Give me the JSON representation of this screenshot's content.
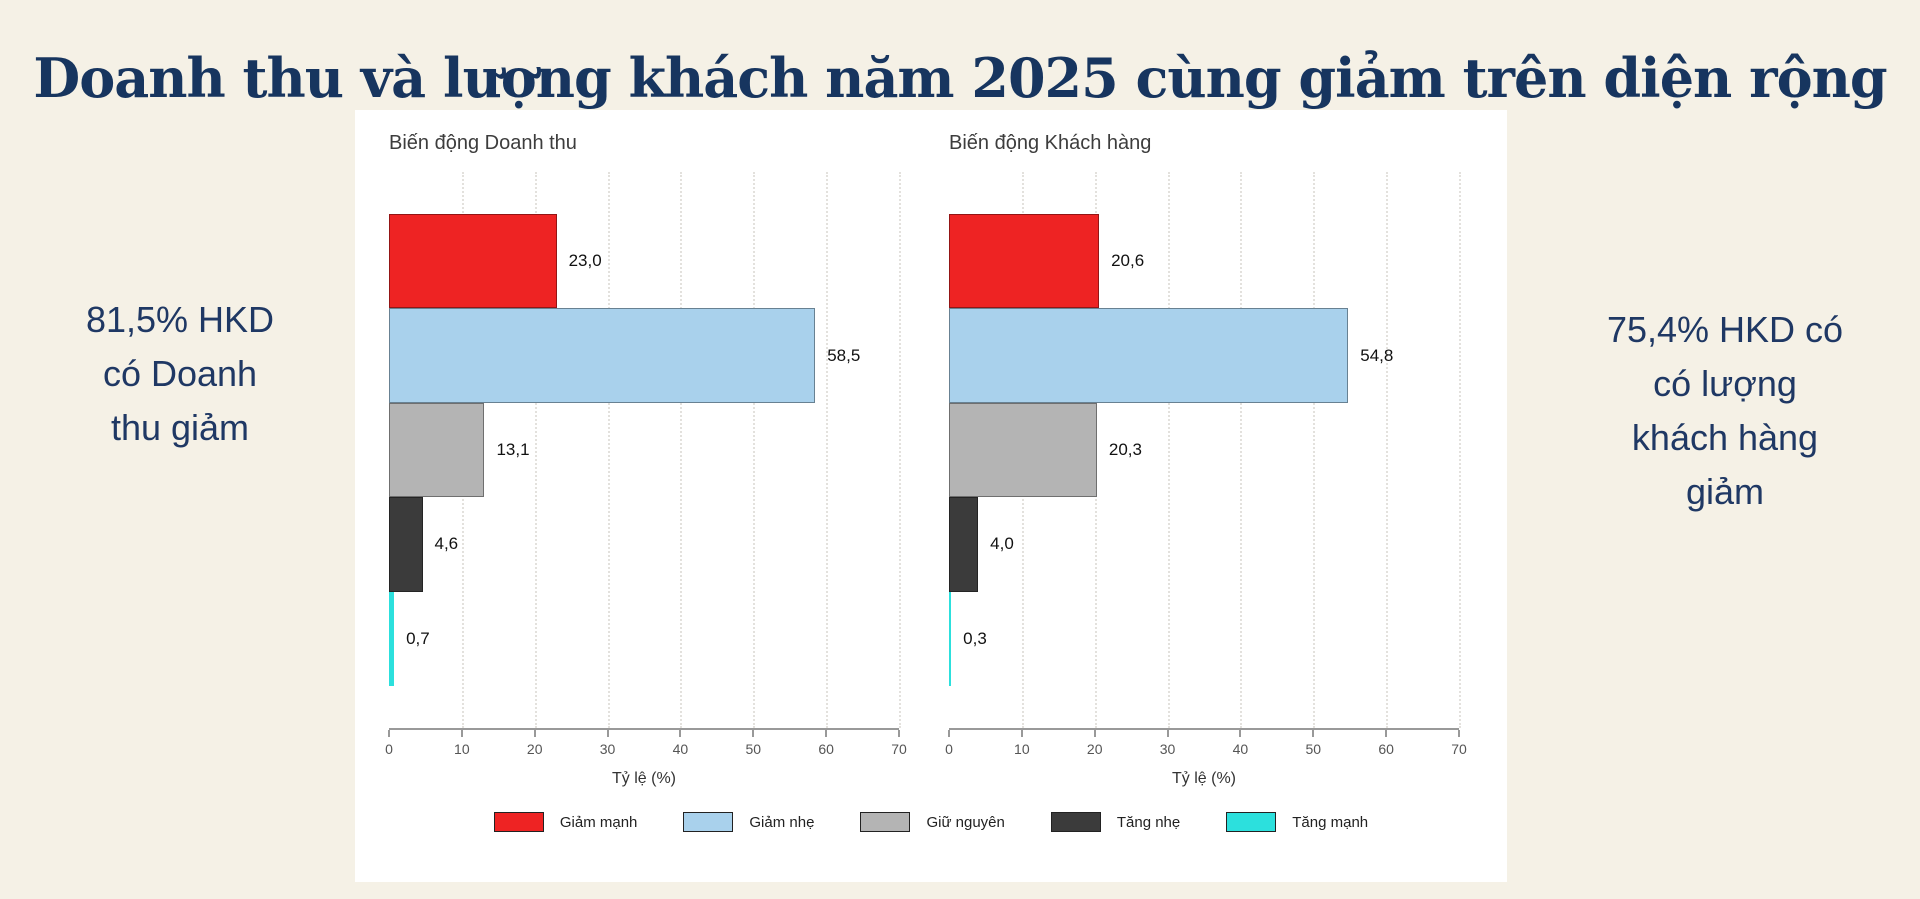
{
  "page": {
    "title": "Doanh thu và lượng khách năm 2025 cùng giảm trên diện rộng",
    "background_color": "#f5f1e6",
    "title_color": "#17355f",
    "panel_color": "#ffffff"
  },
  "annotations": {
    "left_text": "81,5% HKD\ncó Doanh\nthu giảm",
    "right_text": "75,4% HKD có\ncó lượng\nkhách hàng\ngiảm",
    "color": "#1f3864"
  },
  "chart_data": [
    {
      "type": "bar",
      "orientation": "horizontal",
      "title": "Biến động Doanh thu",
      "categories": [
        "Giảm mạnh",
        "Giảm nhẹ",
        "Giữ nguyên",
        "Tăng nhẹ",
        "Tăng mạnh"
      ],
      "values": [
        23.0,
        58.5,
        13.1,
        4.6,
        0.7
      ],
      "value_labels": [
        "23,0",
        "58,5",
        "13,1",
        "4,6",
        "0,7"
      ],
      "bar_colors": [
        "#ee2323",
        "#a9d1ec",
        "#b4b4b4",
        "#3b3b3b",
        "#2ce0dd"
      ],
      "xlabel": "Tỷ lệ (%)",
      "xlim": [
        0,
        70
      ],
      "xticks": [
        0,
        10,
        20,
        30,
        40,
        50,
        60,
        70
      ],
      "grid": "vertical-dotted"
    },
    {
      "type": "bar",
      "orientation": "horizontal",
      "title": "Biến động Khách hàng",
      "categories": [
        "Giảm mạnh",
        "Giảm nhẹ",
        "Giữ nguyên",
        "Tăng nhẹ",
        "Tăng mạnh"
      ],
      "values": [
        20.6,
        54.8,
        20.3,
        4.0,
        0.3
      ],
      "value_labels": [
        "20,6",
        "54,8",
        "20,3",
        "4,0",
        "0,3"
      ],
      "bar_colors": [
        "#ee2323",
        "#a9d1ec",
        "#b4b4b4",
        "#3b3b3b",
        "#2ce0dd"
      ],
      "xlabel": "Tỷ lệ (%)",
      "xlim": [
        0,
        70
      ],
      "xticks": [
        0,
        10,
        20,
        30,
        40,
        50,
        60,
        70
      ],
      "grid": "vertical-dotted"
    }
  ],
  "legend": {
    "position": "bottom-center",
    "items": [
      {
        "label": "Giảm mạnh",
        "color": "#ee2323"
      },
      {
        "label": "Giảm nhẹ",
        "color": "#a9d1ec"
      },
      {
        "label": "Giữ nguyên",
        "color": "#b4b4b4"
      },
      {
        "label": "Tăng nhẹ",
        "color": "#3b3b3b"
      },
      {
        "label": "Tăng mạnh",
        "color": "#2ce0dd"
      }
    ]
  }
}
